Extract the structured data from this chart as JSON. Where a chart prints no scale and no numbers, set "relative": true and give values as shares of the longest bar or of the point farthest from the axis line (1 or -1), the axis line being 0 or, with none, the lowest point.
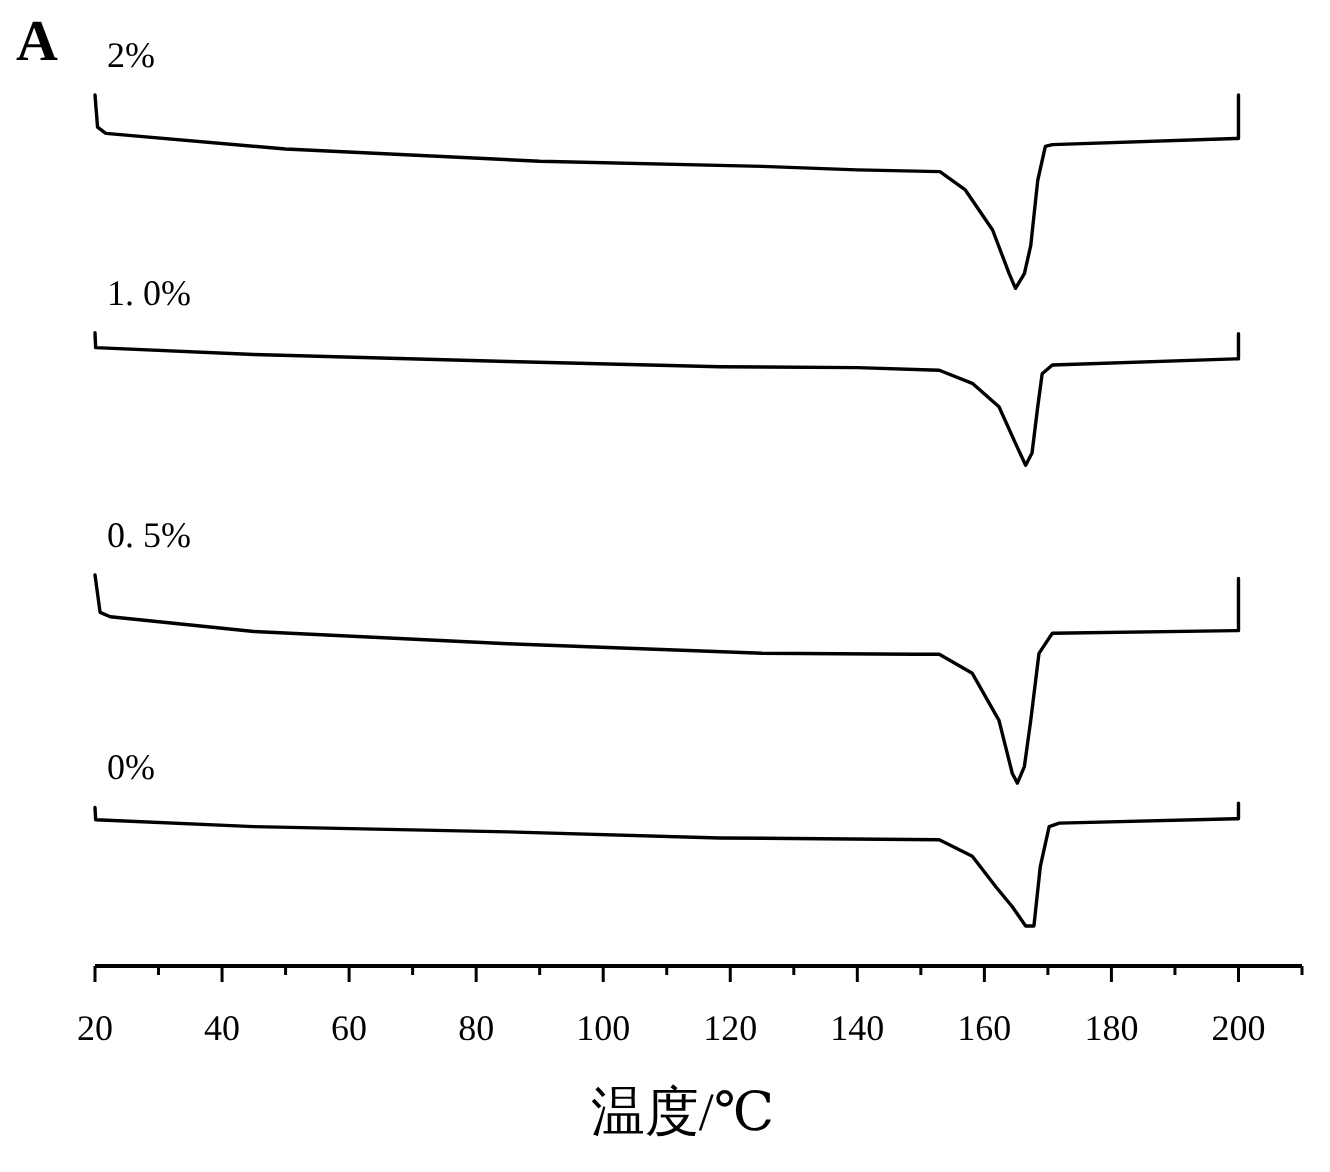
{
  "chart_data": {
    "type": "line",
    "relative": true,
    "xlabel": "温度/℃",
    "annotations": [
      "A"
    ],
    "xlim": [
      20,
      210
    ],
    "xticks": [
      20,
      {
        "value": 30,
        "label": null
      },
      40,
      {
        "value": 50,
        "label": null
      },
      60,
      {
        "value": 70,
        "label": null
      },
      80,
      {
        "value": 90,
        "label": null
      },
      100,
      {
        "value": 110,
        "label": null
      },
      120,
      {
        "value": 130,
        "label": null
      },
      140,
      {
        "value": 150,
        "label": null
      },
      160,
      {
        "value": 170,
        "label": null
      },
      180,
      {
        "value": 190,
        "label": null
      },
      200,
      {
        "value": 210,
        "label": null
      }
    ],
    "series": [
      {
        "name": "2%",
        "color": "#000000",
        "x": [
          20,
          20.4,
          21.7,
          50,
          90,
          125,
          140,
          153,
          157,
          161.3,
          163.9,
          164.9,
          166.3,
          167.3,
          168.4,
          169.6,
          170.7,
          199.5,
          200,
          200
        ],
        "values": [
          1.0,
          0.963,
          0.956,
          0.938,
          0.924,
          0.918,
          0.914,
          0.912,
          0.891,
          0.845,
          0.795,
          0.778,
          0.795,
          0.827,
          0.902,
          0.941,
          0.943,
          0.95,
          0.95,
          1.0
        ]
      },
      {
        "name": "1. 0%",
        "color": "#000000",
        "x": [
          20,
          20.1,
          45,
          85,
          118.3,
          140,
          152.9,
          158.1,
          162.3,
          164.9,
          166.5,
          167.5,
          168.4,
          169.1,
          170.7,
          199.5,
          200,
          200
        ],
        "values": [
          0.727,
          0.71,
          0.702,
          0.694,
          0.688,
          0.687,
          0.684,
          0.669,
          0.642,
          0.6,
          0.575,
          0.589,
          0.642,
          0.68,
          0.69,
          0.697,
          0.697,
          0.726
        ]
      },
      {
        "name": "0. 5%",
        "color": "#000000",
        "x": [
          20,
          20.8,
          22.4,
          45,
          85,
          125,
          149,
          152.9,
          158.1,
          162.3,
          164.4,
          165.2,
          166.3,
          167.3,
          168.6,
          170.7,
          199.5,
          200,
          200
        ],
        "values": [
          0.449,
          0.406,
          0.401,
          0.384,
          0.37,
          0.359,
          0.358,
          0.358,
          0.336,
          0.282,
          0.221,
          0.21,
          0.229,
          0.282,
          0.359,
          0.382,
          0.385,
          0.385,
          0.445
        ]
      },
      {
        "name": "0%",
        "color": "#000000",
        "x": [
          20,
          20.1,
          45,
          85,
          118.3,
          152.9,
          158.1,
          161.8,
          164.4,
          166.5,
          167.8,
          168.8,
          170.2,
          171.8,
          199.5,
          200,
          200
        ],
        "values": [
          0.182,
          0.168,
          0.16,
          0.154,
          0.147,
          0.145,
          0.126,
          0.091,
          0.068,
          0.046,
          0.046,
          0.114,
          0.16,
          0.164,
          0.169,
          0.169,
          0.187
        ]
      }
    ]
  }
}
